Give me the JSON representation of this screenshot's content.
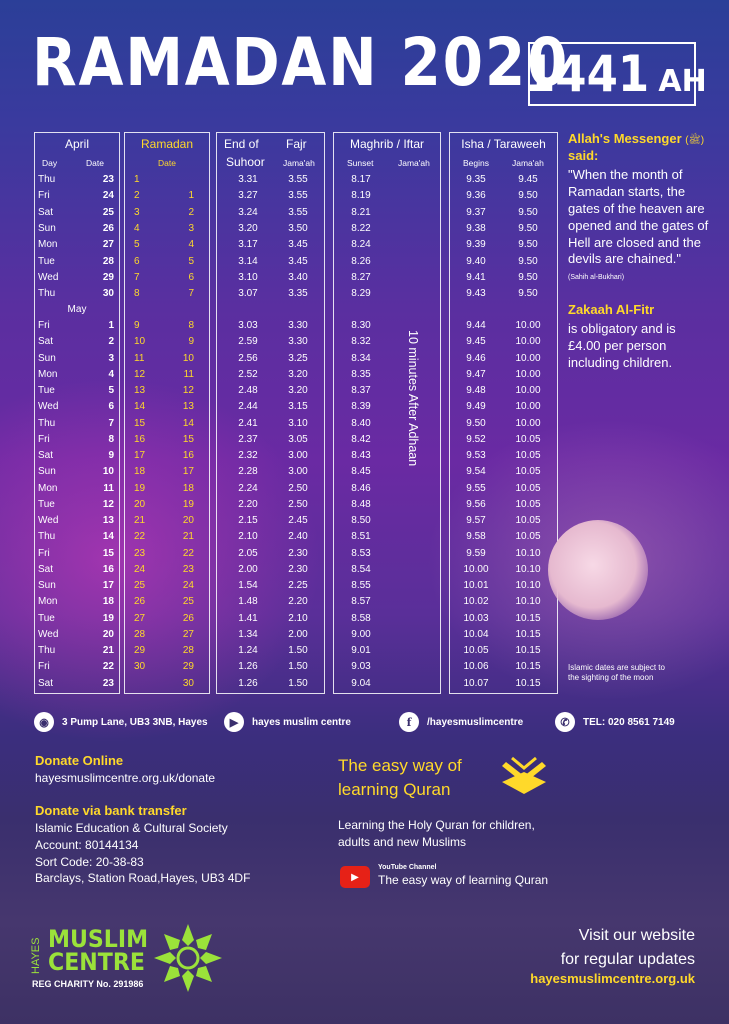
{
  "title": "RAMADAN 2020",
  "hijri": {
    "year": "1441",
    "suffix": "AH"
  },
  "april": {
    "header": "April",
    "day_label": "Day",
    "date_label": "Date",
    "may_label": "May"
  },
  "ramadan": {
    "header": "Ramadan",
    "date_label": "Date"
  },
  "suhoor": {
    "header1": "End of",
    "header2": "Suhoor",
    "fajr_header": "Fajr",
    "fajr_sub": "Jama'ah"
  },
  "maghrib": {
    "header": "Maghrib / Iftar",
    "sunset_label": "Sunset",
    "jamaah_label": "Jama'ah",
    "note": "10 minutes After Adhaan"
  },
  "isha": {
    "header": "Isha / Taraweeh",
    "begins_label": "Begins",
    "jamaah_label": "Jama'ah"
  },
  "rows": [
    {
      "day": "Thu",
      "date": "23",
      "rc1": "1",
      "rc2": "",
      "suhoor": "3.31",
      "fajr": "3.55",
      "sunset": "8.17",
      "isha": "9.35",
      "isha_j": "9.45"
    },
    {
      "day": "Fri",
      "date": "24",
      "rc1": "2",
      "rc2": "1",
      "suhoor": "3.27",
      "fajr": "3.55",
      "sunset": "8.19",
      "isha": "9.36",
      "isha_j": "9.50"
    },
    {
      "day": "Sat",
      "date": "25",
      "rc1": "3",
      "rc2": "2",
      "suhoor": "3.24",
      "fajr": "3.55",
      "sunset": "8.21",
      "isha": "9.37",
      "isha_j": "9.50"
    },
    {
      "day": "Sun",
      "date": "26",
      "rc1": "4",
      "rc2": "3",
      "suhoor": "3.20",
      "fajr": "3.50",
      "sunset": "8.22",
      "isha": "9.38",
      "isha_j": "9.50"
    },
    {
      "day": "Mon",
      "date": "27",
      "rc1": "5",
      "rc2": "4",
      "suhoor": "3.17",
      "fajr": "3.45",
      "sunset": "8.24",
      "isha": "9.39",
      "isha_j": "9.50"
    },
    {
      "day": "Tue",
      "date": "28",
      "rc1": "6",
      "rc2": "5",
      "suhoor": "3.14",
      "fajr": "3.45",
      "sunset": "8.26",
      "isha": "9.40",
      "isha_j": "9.50"
    },
    {
      "day": "Wed",
      "date": "29",
      "rc1": "7",
      "rc2": "6",
      "suhoor": "3.10",
      "fajr": "3.40",
      "sunset": "8.27",
      "isha": "9.41",
      "isha_j": "9.50"
    },
    {
      "day": "Thu",
      "date": "30",
      "rc1": "8",
      "rc2": "7",
      "suhoor": "3.07",
      "fajr": "3.35",
      "sunset": "8.29",
      "isha": "9.43",
      "isha_j": "9.50"
    },
    {
      "day": "Fri",
      "date": "1",
      "rc1": "9",
      "rc2": "8",
      "suhoor": "3.03",
      "fajr": "3.30",
      "sunset": "8.30",
      "isha": "9.44",
      "isha_j": "10.00"
    },
    {
      "day": "Sat",
      "date": "2",
      "rc1": "10",
      "rc2": "9",
      "suhoor": "2.59",
      "fajr": "3.30",
      "sunset": "8.32",
      "isha": "9.45",
      "isha_j": "10.00"
    },
    {
      "day": "Sun",
      "date": "3",
      "rc1": "11",
      "rc2": "10",
      "suhoor": "2.56",
      "fajr": "3.25",
      "sunset": "8.34",
      "isha": "9.46",
      "isha_j": "10.00"
    },
    {
      "day": "Mon",
      "date": "4",
      "rc1": "12",
      "rc2": "11",
      "suhoor": "2.52",
      "fajr": "3.20",
      "sunset": "8.35",
      "isha": "9.47",
      "isha_j": "10.00"
    },
    {
      "day": "Tue",
      "date": "5",
      "rc1": "13",
      "rc2": "12",
      "suhoor": "2.48",
      "fajr": "3.20",
      "sunset": "8.37",
      "isha": "9.48",
      "isha_j": "10.00"
    },
    {
      "day": "Wed",
      "date": "6",
      "rc1": "14",
      "rc2": "13",
      "suhoor": "2.44",
      "fajr": "3.15",
      "sunset": "8.39",
      "isha": "9.49",
      "isha_j": "10.00"
    },
    {
      "day": "Thu",
      "date": "7",
      "rc1": "15",
      "rc2": "14",
      "suhoor": "2.41",
      "fajr": "3.10",
      "sunset": "8.40",
      "isha": "9.50",
      "isha_j": "10.00"
    },
    {
      "day": "Fri",
      "date": "8",
      "rc1": "16",
      "rc2": "15",
      "suhoor": "2.37",
      "fajr": "3.05",
      "sunset": "8.42",
      "isha": "9.52",
      "isha_j": "10.05"
    },
    {
      "day": "Sat",
      "date": "9",
      "rc1": "17",
      "rc2": "16",
      "suhoor": "2.32",
      "fajr": "3.00",
      "sunset": "8.43",
      "isha": "9.53",
      "isha_j": "10.05"
    },
    {
      "day": "Sun",
      "date": "10",
      "rc1": "18",
      "rc2": "17",
      "suhoor": "2.28",
      "fajr": "3.00",
      "sunset": "8.45",
      "isha": "9.54",
      "isha_j": "10.05"
    },
    {
      "day": "Mon",
      "date": "11",
      "rc1": "19",
      "rc2": "18",
      "suhoor": "2.24",
      "fajr": "2.50",
      "sunset": "8.46",
      "isha": "9.55",
      "isha_j": "10.05"
    },
    {
      "day": "Tue",
      "date": "12",
      "rc1": "20",
      "rc2": "19",
      "suhoor": "2.20",
      "fajr": "2.50",
      "sunset": "8.48",
      "isha": "9.56",
      "isha_j": "10.05"
    },
    {
      "day": "Wed",
      "date": "13",
      "rc1": "21",
      "rc2": "20",
      "suhoor": "2.15",
      "fajr": "2.45",
      "sunset": "8.50",
      "isha": "9.57",
      "isha_j": "10.05"
    },
    {
      "day": "Thu",
      "date": "14",
      "rc1": "22",
      "rc2": "21",
      "suhoor": "2.10",
      "fajr": "2.40",
      "sunset": "8.51",
      "isha": "9.58",
      "isha_j": "10.05"
    },
    {
      "day": "Fri",
      "date": "15",
      "rc1": "23",
      "rc2": "22",
      "suhoor": "2.05",
      "fajr": "2.30",
      "sunset": "8.53",
      "isha": "9.59",
      "isha_j": "10.10"
    },
    {
      "day": "Sat",
      "date": "16",
      "rc1": "24",
      "rc2": "23",
      "suhoor": "2.00",
      "fajr": "2.30",
      "sunset": "8.54",
      "isha": "10.00",
      "isha_j": "10.10"
    },
    {
      "day": "Sun",
      "date": "17",
      "rc1": "25",
      "rc2": "24",
      "suhoor": "1.54",
      "fajr": "2.25",
      "sunset": "8.55",
      "isha": "10.01",
      "isha_j": "10.10"
    },
    {
      "day": "Mon",
      "date": "18",
      "rc1": "26",
      "rc2": "25",
      "suhoor": "1.48",
      "fajr": "2.20",
      "sunset": "8.57",
      "isha": "10.02",
      "isha_j": "10.10"
    },
    {
      "day": "Tue",
      "date": "19",
      "rc1": "27",
      "rc2": "26",
      "suhoor": "1.41",
      "fajr": "2.10",
      "sunset": "8.58",
      "isha": "10.03",
      "isha_j": "10.15"
    },
    {
      "day": "Wed",
      "date": "20",
      "rc1": "28",
      "rc2": "27",
      "suhoor": "1.34",
      "fajr": "2.00",
      "sunset": "9.00",
      "isha": "10.04",
      "isha_j": "10.15"
    },
    {
      "day": "Thu",
      "date": "21",
      "rc1": "29",
      "rc2": "28",
      "suhoor": "1.24",
      "fajr": "1.50",
      "sunset": "9.01",
      "isha": "10.05",
      "isha_j": "10.15"
    },
    {
      "day": "Fri",
      "date": "22",
      "rc1": "30",
      "rc2": "29",
      "suhoor": "1.26",
      "fajr": "1.50",
      "sunset": "9.03",
      "isha": "10.06",
      "isha_j": "10.15"
    },
    {
      "day": "Sat",
      "date": "23",
      "rc1": "",
      "rc2": "30",
      "suhoor": "1.26",
      "fajr": "1.50",
      "sunset": "9.04",
      "isha": "10.07",
      "isha_j": "10.15"
    }
  ],
  "hadith": {
    "heading": "Allah's Messenger",
    "honorific": "(ﷺ)",
    "heading2": "said:",
    "quote": "\"When the month of Ramadan starts, the gates of the heaven are opened and the gates of Hell are closed and the devils are chained.\"",
    "source": "(Sahih al-Bukhari)"
  },
  "zakaah": {
    "heading": "Zakaah Al-Fitr",
    "text": "is obligatory and is £4.00 per person including children."
  },
  "moon_note": "Islamic dates are subject to the sighting of the moon",
  "contacts": {
    "address": "3 Pump Lane, UB3 3NB, Hayes",
    "youtube": "hayes muslim centre",
    "facebook": "/hayesmuslimcentre",
    "phone": "TEL: 020 8561 7149"
  },
  "donate": {
    "online_heading": "Donate Online",
    "online_url": "hayesmuslimcentre.org.uk/donate",
    "bank_heading": "Donate via bank transfer",
    "bank_lines": [
      "Islamic Education & Cultural Society",
      "Account: 80144134",
      "Sort Code: 20-38-83",
      "Barclays, Station Road,Hayes, UB3 4DF"
    ]
  },
  "quran": {
    "title_line1": "The easy way of",
    "title_line2": "learning Quran",
    "desc_line1": "Learning the Holy Quran for children,",
    "desc_line2": "adults and new Muslims",
    "yt_label": "YouTube Channel",
    "yt_name": "The easy way of learning Quran"
  },
  "logo": {
    "side": "HAYES",
    "line1": "MUSLIM",
    "line2": "CENTRE",
    "charity": "REG CHARITY No.  291986"
  },
  "visit": {
    "line1": "Visit our website",
    "line2": "for regular updates",
    "url": "hayesmuslimcentre.org.uk"
  },
  "colors": {
    "accent_yellow": "#ffd92a",
    "logo_green": "#9be23a"
  }
}
